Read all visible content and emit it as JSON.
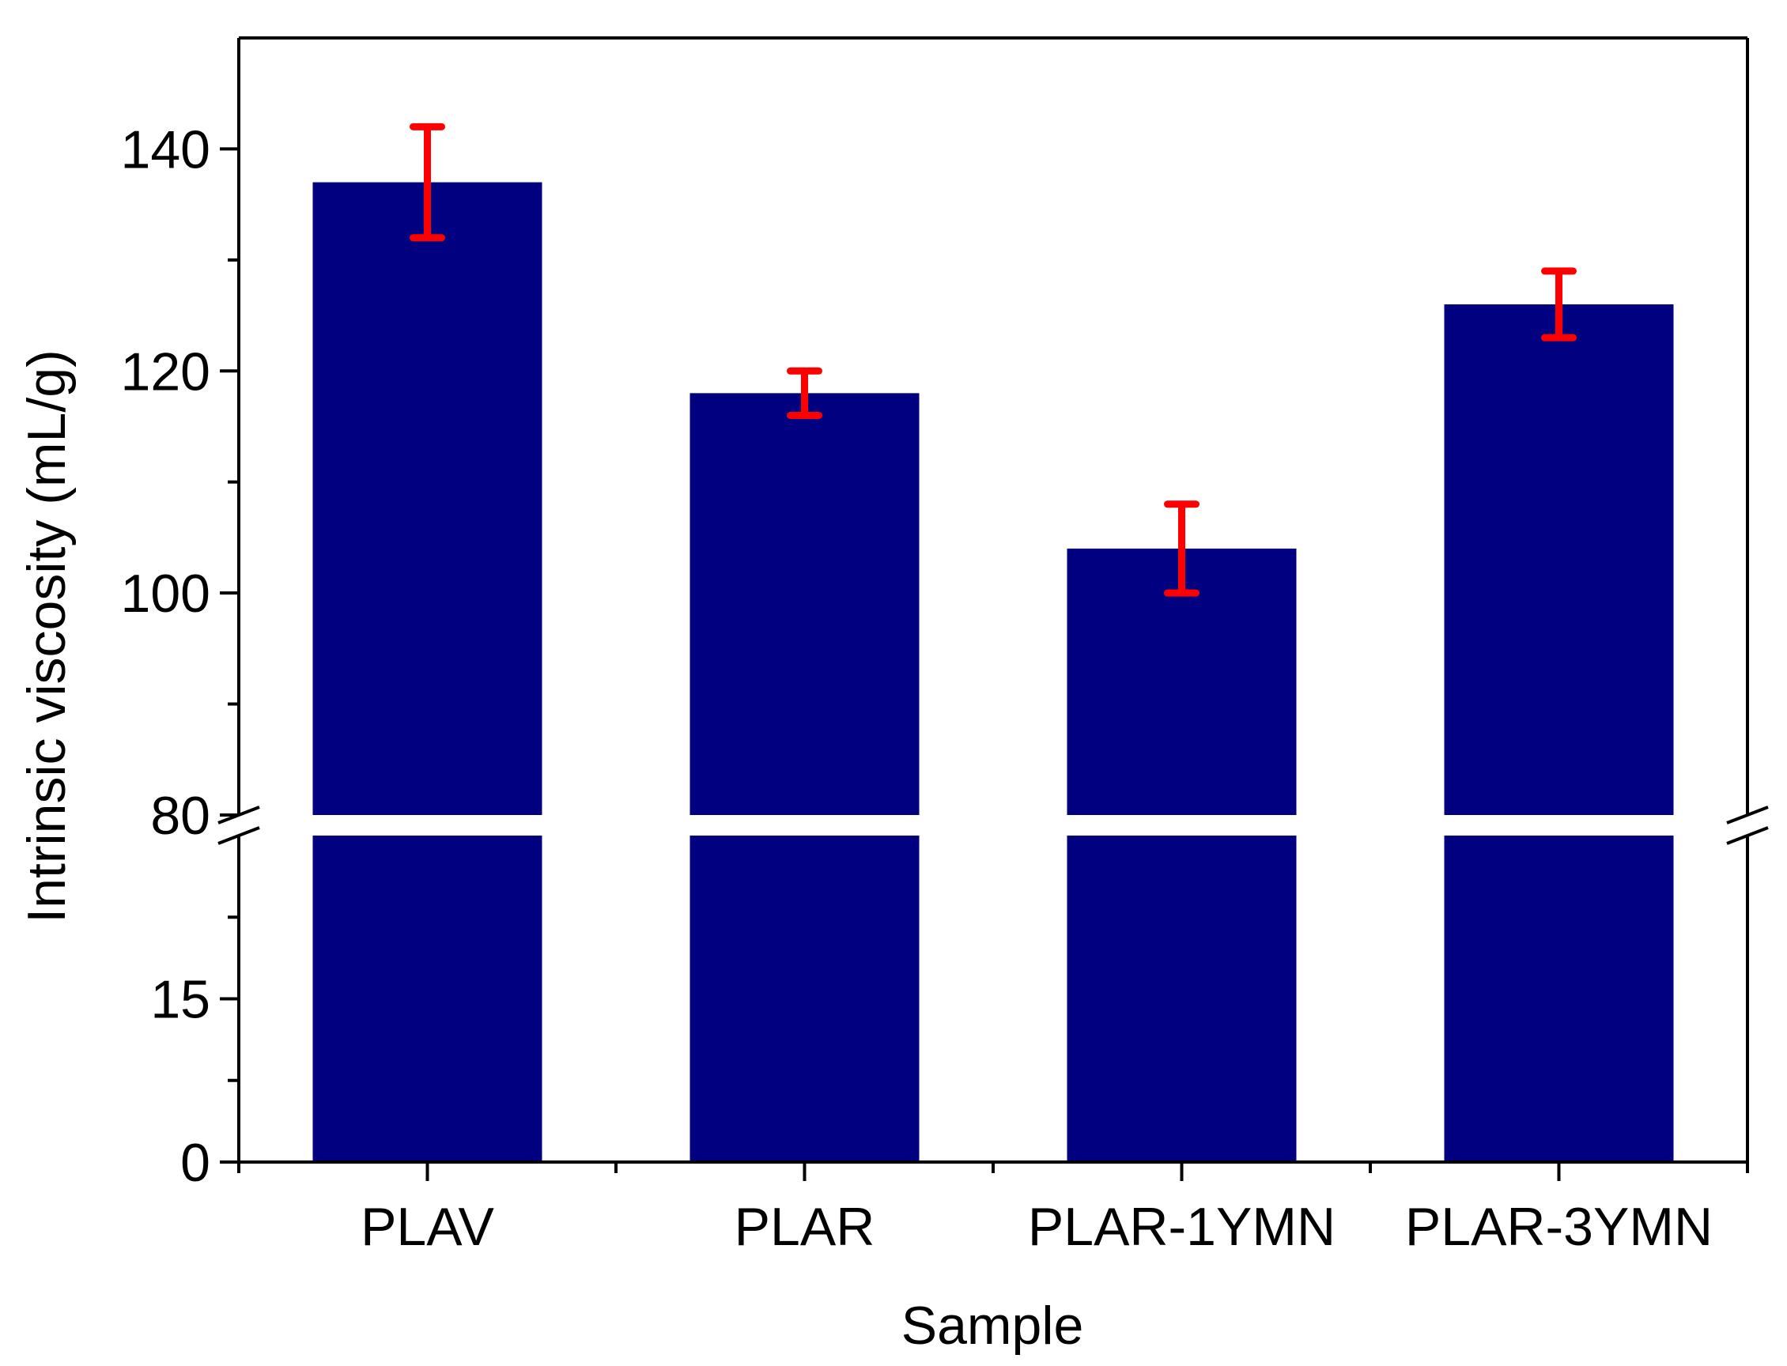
{
  "chart_data": {
    "type": "bar",
    "title": "",
    "xlabel": "Sample",
    "ylabel": "Intrinsic viscosity (mL/g)",
    "categories": [
      "PLAV",
      "PLAR",
      "PLAR-1YMN",
      "PLAR-3YMN"
    ],
    "series": [
      {
        "values": [
          137,
          118,
          104,
          126
        ],
        "errors": [
          5,
          2,
          4,
          3
        ],
        "color": "#000080",
        "error_color": "#ff0000"
      }
    ],
    "axis_break": {
      "lower_max": 30,
      "upper_min": 80
    },
    "ylim_lower": [
      0,
      30
    ],
    "ylim_upper": [
      80,
      150
    ],
    "yticks_lower": [
      "0",
      "15"
    ],
    "yticks_upper": [
      "80",
      "100",
      "120",
      "140"
    ],
    "grid": false,
    "legend": "none"
  }
}
